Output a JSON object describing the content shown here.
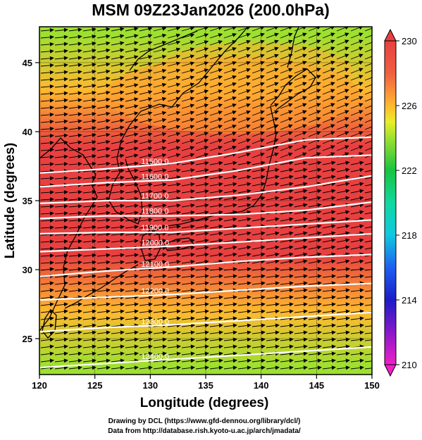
{
  "title": "MSM 09Z23Jan2026 (200.0hPa)",
  "xlabel": "Longitude (degrees)",
  "ylabel": "Latitude  (degrees)",
  "credits": [
    "Drawing by DCL (https://www.gfd-dennou.org/library/dcl/)",
    "Data from http://database.rish.kyoto-u.ac.jp/arch/jmadata/"
  ],
  "colors": {
    "warm": "#e8473c",
    "cool": "#16c43e",
    "coastline": "#000000",
    "contour": "#ffffff",
    "vector": "#000000"
  },
  "chart_data": {
    "type": "heatmap",
    "title": "MSM 09Z23Jan2026 (200.0hPa)",
    "xlabel": "Longitude (degrees)",
    "ylabel": "Latitude  (degrees)",
    "xlim": [
      120,
      150
    ],
    "ylim": [
      22.4,
      47.6
    ],
    "x_ticks": [
      120,
      125,
      130,
      135,
      140,
      145,
      150
    ],
    "y_ticks": [
      25,
      30,
      35,
      40,
      45
    ],
    "grid": true,
    "colorbar": {
      "range": [
        210,
        230
      ],
      "ticks": [
        210,
        214,
        218,
        222,
        226,
        230
      ],
      "stops": [
        {
          "value": 210,
          "color": "#f020c8"
        },
        {
          "value": 212,
          "color": "#8a18c8"
        },
        {
          "value": 214,
          "color": "#1c1cc8"
        },
        {
          "value": 216,
          "color": "#1e60f0"
        },
        {
          "value": 218,
          "color": "#10c8e0"
        },
        {
          "value": 220,
          "color": "#10d8a0"
        },
        {
          "value": 222,
          "color": "#18c440"
        },
        {
          "value": 224,
          "color": "#9ee030"
        },
        {
          "value": 225,
          "color": "#e8ee28"
        },
        {
          "value": 226,
          "color": "#ffb830"
        },
        {
          "value": 228,
          "color": "#f06040"
        },
        {
          "value": 230,
          "color": "#e84040"
        }
      ]
    },
    "contours": [
      {
        "label": "11500.0",
        "lat": [
          37.0,
          37.3,
          37.7,
          38.5,
          39.4,
          39.6
        ]
      },
      {
        "label": "11600.0",
        "lat": [
          36.0,
          36.3,
          36.5,
          37.2,
          38.1,
          38.3
        ]
      },
      {
        "label": "11700.0",
        "lat": [
          34.8,
          35.0,
          35.0,
          35.4,
          36.0,
          36.8
        ]
      },
      {
        "label": "11800.0",
        "lat": [
          33.7,
          33.9,
          33.9,
          34.0,
          34.3,
          34.9
        ]
      },
      {
        "label": "11900.0",
        "lat": [
          32.6,
          32.7,
          32.7,
          33.0,
          33.3,
          33.6
        ]
      },
      {
        "label": "12000.0",
        "lat": [
          31.3,
          31.5,
          31.7,
          32.0,
          32.3,
          32.6
        ]
      },
      {
        "label": "12100.0",
        "lat": [
          29.5,
          29.9,
          30.2,
          30.6,
          30.9,
          31.1
        ]
      },
      {
        "label": "12200.0",
        "lat": [
          27.8,
          28.0,
          28.2,
          28.5,
          28.8,
          29.0
        ]
      },
      {
        "label": "12300.0",
        "lat": [
          25.5,
          25.8,
          26.0,
          26.3,
          26.6,
          26.9
        ]
      },
      {
        "label": "12400.0",
        "lat": [
          22.9,
          23.2,
          23.5,
          23.8,
          24.1,
          24.4
        ]
      }
    ],
    "contour_x": [
      120,
      126,
      132,
      138,
      144,
      150
    ],
    "temperature_field": {
      "x": [
        120,
        126,
        132,
        138,
        144,
        150
      ],
      "y": [
        23,
        27,
        31,
        35,
        39,
        43,
        47
      ],
      "values": [
        [
          223,
          223,
          223,
          223,
          223,
          223
        ],
        [
          225,
          225,
          226,
          226,
          226,
          226
        ],
        [
          228,
          228,
          229,
          229,
          229,
          229
        ],
        [
          229,
          229,
          230,
          230,
          230,
          230
        ],
        [
          228,
          229,
          229,
          229,
          228,
          227
        ],
        [
          225,
          226,
          227,
          227,
          226,
          225
        ],
        [
          223,
          224,
          225,
          225,
          224,
          223
        ]
      ]
    }
  }
}
